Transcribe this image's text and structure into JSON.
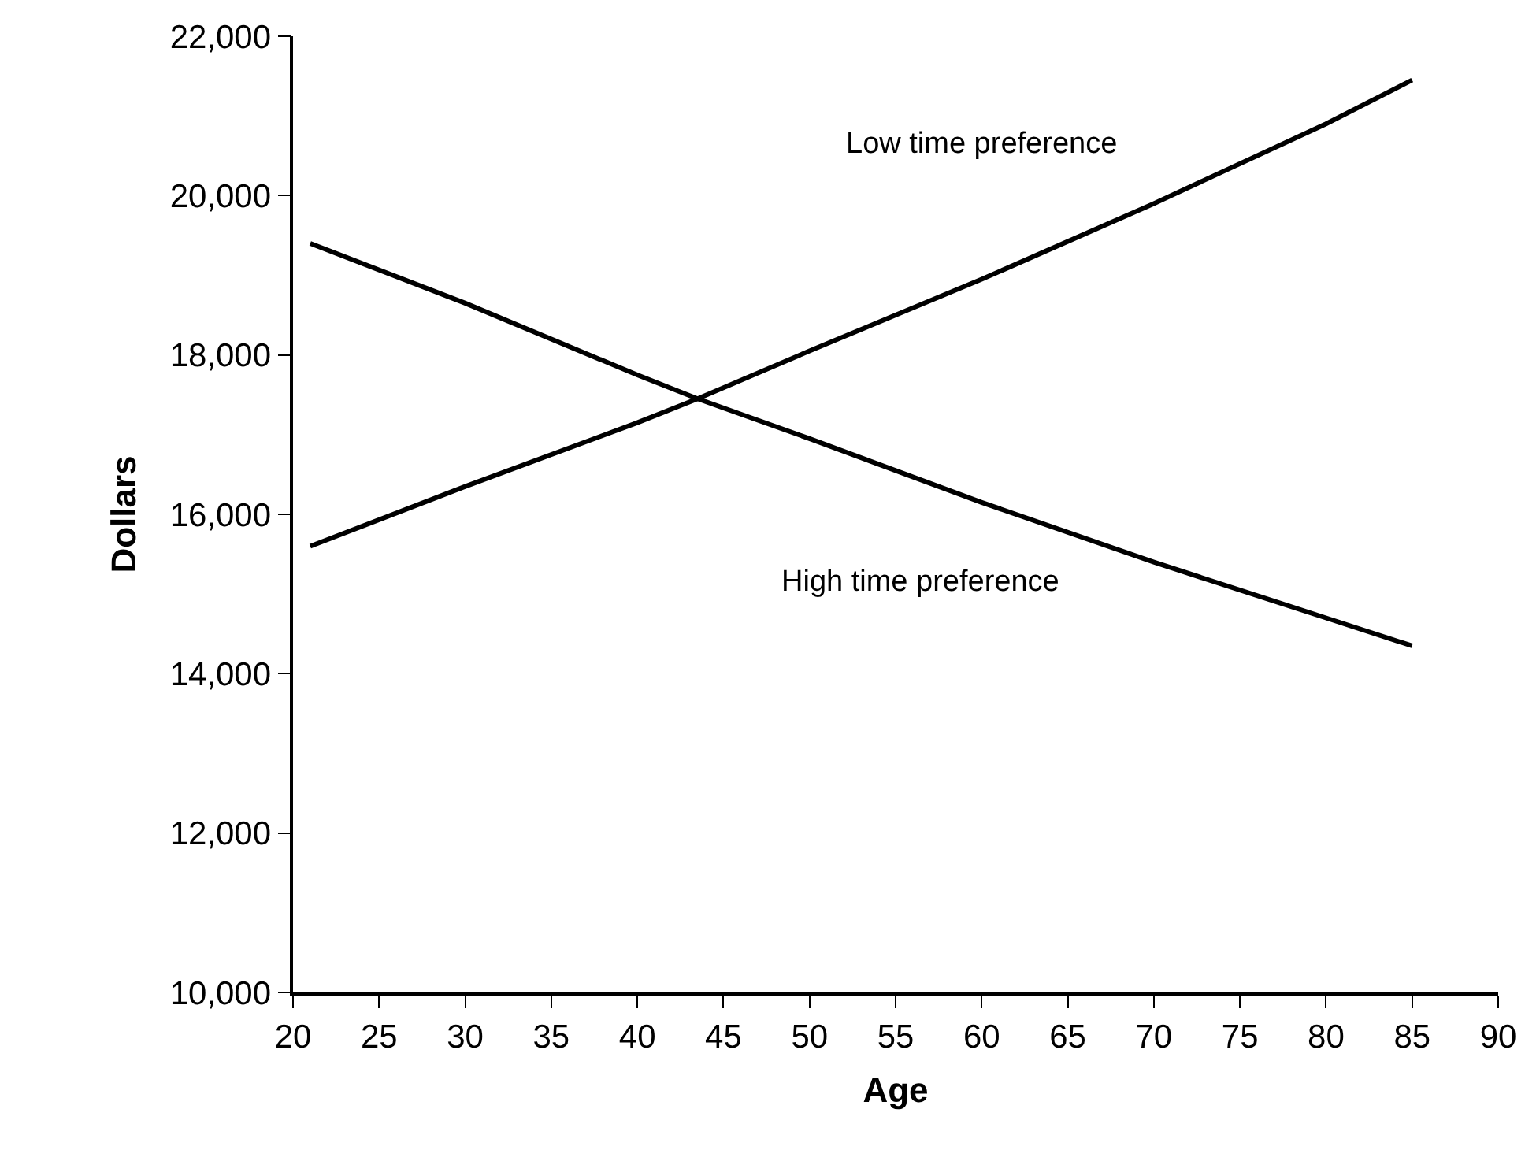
{
  "chart_data": {
    "type": "line",
    "xlabel": "Age",
    "ylabel": "Dollars",
    "x": [
      21,
      30,
      40,
      43.5,
      50,
      60,
      70,
      80,
      85
    ],
    "series": [
      {
        "name": "Low time preference",
        "color": "#000000",
        "values": [
          15600,
          16350,
          17150,
          17450,
          18050,
          18950,
          19900,
          20900,
          21450
        ]
      },
      {
        "name": "High time preference",
        "color": "#000000",
        "values": [
          19400,
          18650,
          17750,
          17450,
          16950,
          16150,
          15400,
          14700,
          14350
        ]
      }
    ],
    "xlim": [
      20,
      90
    ],
    "xticks": [
      20,
      25,
      30,
      35,
      40,
      45,
      50,
      55,
      60,
      65,
      70,
      75,
      80,
      85,
      90
    ],
    "ylim": [
      10000,
      22000
    ],
    "yticks": [
      {
        "value": 10000,
        "label": "10,000"
      },
      {
        "value": 12000,
        "label": "12,000"
      },
      {
        "value": 14000,
        "label": "14,000"
      },
      {
        "value": 16000,
        "label": "16,000"
      },
      {
        "value": 18000,
        "label": "18,000"
      },
      {
        "value": 20000,
        "label": "20,000"
      },
      {
        "value": 22000,
        "label": "22,000"
      }
    ],
    "legend": false,
    "marker": "none",
    "line_style": "solid"
  }
}
